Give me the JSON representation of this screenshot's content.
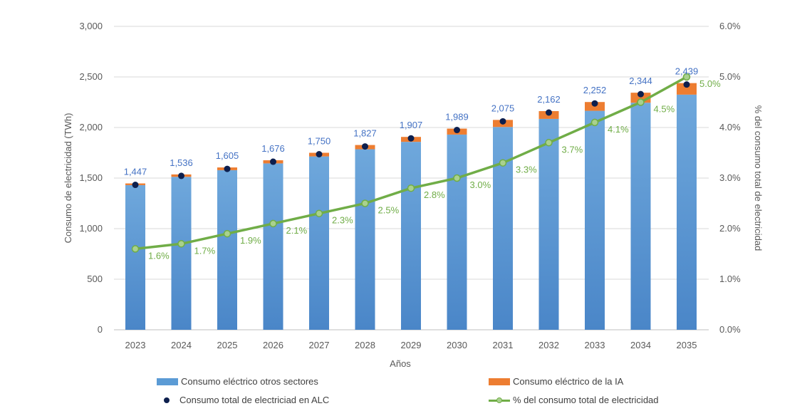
{
  "chart_data": {
    "type": "bar",
    "categories": [
      "2023",
      "2024",
      "2025",
      "2026",
      "2027",
      "2028",
      "2029",
      "2030",
      "2031",
      "2032",
      "2033",
      "2034",
      "2035"
    ],
    "series": [
      {
        "name": "Consumo eléctrico otros sectores",
        "type": "bar",
        "stack": "total",
        "axis": "left",
        "values": [
          1430,
          1512,
          1578,
          1645,
          1714,
          1785,
          1858,
          1930,
          2005,
          2085,
          2165,
          2245,
          2325
        ]
      },
      {
        "name": "Consumo eléctrico de la IA",
        "type": "bar",
        "stack": "total",
        "axis": "left",
        "values": [
          17,
          24,
          27,
          31,
          36,
          42,
          49,
          59,
          70,
          77,
          87,
          99,
          114
        ]
      },
      {
        "name": "Consumo total de electriciad en ALC",
        "type": "scatter",
        "axis": "left",
        "values": [
          1447,
          1536,
          1605,
          1676,
          1750,
          1827,
          1907,
          1989,
          2075,
          2162,
          2252,
          2344,
          2439
        ]
      },
      {
        "name": "% del consumo total de electricidad",
        "type": "line",
        "axis": "right",
        "values": [
          1.6,
          1.7,
          1.9,
          2.1,
          2.3,
          2.5,
          2.8,
          3.0,
          3.3,
          3.7,
          4.1,
          4.5,
          5.0
        ]
      }
    ],
    "total_labels": [
      "1,447",
      "1,536",
      "1,605",
      "1,676",
      "1,750",
      "1,827",
      "1,907",
      "1,989",
      "2,075",
      "2,162",
      "2,252",
      "2,344",
      "2,439"
    ],
    "pct_labels": [
      "1.6%",
      "1.7%",
      "1.9%",
      "2.1%",
      "2.3%",
      "2.5%",
      "2.8%",
      "3.0%",
      "3.3%",
      "3.7%",
      "4.1%",
      "4.5%",
      "5.0%"
    ],
    "xlabel": "Años",
    "ylabel": "Consumo de electricidad (TWh)",
    "y2label": "% del consumo total de electricidad",
    "ylim": [
      0,
      3000
    ],
    "y2lim": [
      0,
      6
    ],
    "yticks": [
      "0",
      "500",
      "1,000",
      "1,500",
      "2,000",
      "2,500",
      "3,000"
    ],
    "y2ticks": [
      "0.0%",
      "1.0%",
      "2.0%",
      "3.0%",
      "4.0%",
      "5.0%",
      "6.0%"
    ],
    "grid": true,
    "legend_position": "bottom",
    "colors": {
      "bar_other": "#5b9bd5",
      "bar_ai": "#ed7d31",
      "dot": "#0d1f4e",
      "line": "#70ad47",
      "marker_fill": "#a9d18e",
      "total_label": "#4472c4"
    }
  },
  "legend": {
    "other": "Consumo eléctrico otros sectores",
    "ai": "Consumo eléctrico de la IA",
    "total": "Consumo total de electriciad en ALC",
    "pct": "% del consumo total de electricidad"
  }
}
